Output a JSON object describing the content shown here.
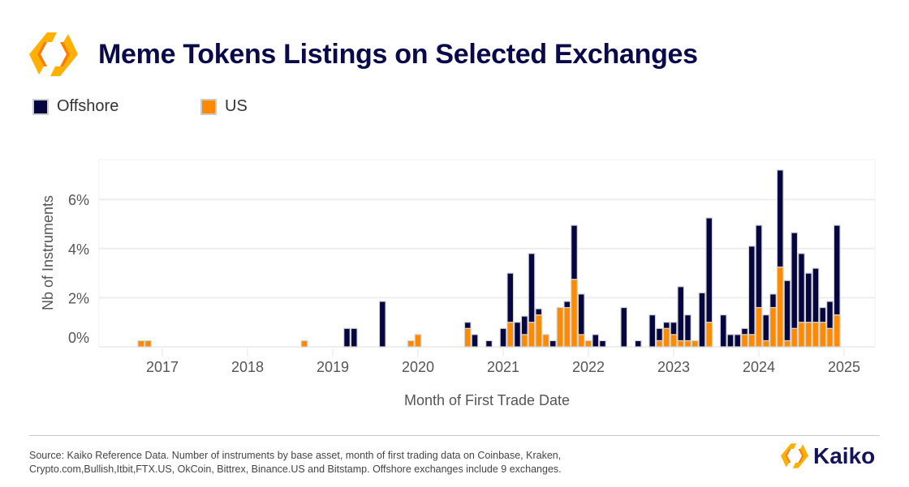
{
  "title": "Meme Tokens Listings on Selected Exchanges",
  "brand_name": "Kaiko",
  "colors": {
    "offshore": "#05053f",
    "us": "#ff8a00",
    "title": "#0a0a4a",
    "grid": "#eeeeee"
  },
  "legend": [
    {
      "label": "Offshore",
      "color": "#05053f"
    },
    {
      "label": "US",
      "color": "#ff8a00"
    }
  ],
  "source_line1": "Source: Kaiko Reference Data. Number of instruments by base asset, month of first trading data on Coinbase, Kraken,",
  "source_line2": "Crypto.com,Bullish,Itbit,FTX.US, OkCoin, Bittrex, Binance.US and Bitstamp. Offshore exchanges include 9 exchanges.",
  "chart_data": {
    "type": "bar",
    "stacked": true,
    "title": "Meme Tokens Listings on Selected Exchanges",
    "xlabel": "Month of First Trade Date",
    "ylabel": "Nb of Instruments",
    "ylim": [
      0,
      7.6
    ],
    "yticks": [
      0,
      2,
      4,
      6
    ],
    "ytick_labels": [
      "0%",
      "2%",
      "4%",
      "6%"
    ],
    "xtick_labels": [
      "2017",
      "2018",
      "2019",
      "2020",
      "2021",
      "2022",
      "2023",
      "2024",
      "2025"
    ],
    "x_start": "2016-09",
    "x_end": "2025-05",
    "legend_position": "top-left",
    "grid": true,
    "series_order": [
      "US",
      "Offshore"
    ],
    "points": [
      {
        "month": "2016-10",
        "us": 0.25,
        "offshore": 0
      },
      {
        "month": "2016-11",
        "us": 0.25,
        "offshore": 0
      },
      {
        "month": "2018-09",
        "us": 0.25,
        "offshore": 0
      },
      {
        "month": "2019-03",
        "us": 0,
        "offshore": 0.75
      },
      {
        "month": "2019-04",
        "us": 0,
        "offshore": 0.75
      },
      {
        "month": "2019-08",
        "us": 0,
        "offshore": 1.85
      },
      {
        "month": "2019-12",
        "us": 0.25,
        "offshore": 0
      },
      {
        "month": "2020-01",
        "us": 0.5,
        "offshore": 0
      },
      {
        "month": "2020-08",
        "us": 0.75,
        "offshore": 0.25
      },
      {
        "month": "2020-09",
        "us": 0,
        "offshore": 0.5
      },
      {
        "month": "2020-11",
        "us": 0,
        "offshore": 0.25
      },
      {
        "month": "2021-01",
        "us": 0,
        "offshore": 0.75
      },
      {
        "month": "2021-02",
        "us": 1.0,
        "offshore": 2.0
      },
      {
        "month": "2021-03",
        "us": 0,
        "offshore": 1.0
      },
      {
        "month": "2021-04",
        "us": 0.5,
        "offshore": 0.75
      },
      {
        "month": "2021-05",
        "us": 1.0,
        "offshore": 2.8
      },
      {
        "month": "2021-06",
        "us": 1.3,
        "offshore": 0.25
      },
      {
        "month": "2021-07",
        "us": 0.5,
        "offshore": 0
      },
      {
        "month": "2021-08",
        "us": 0,
        "offshore": 0.25
      },
      {
        "month": "2021-09",
        "us": 1.6,
        "offshore": 0
      },
      {
        "month": "2021-10",
        "us": 1.6,
        "offshore": 0.25
      },
      {
        "month": "2021-11",
        "us": 2.75,
        "offshore": 2.2
      },
      {
        "month": "2021-12",
        "us": 0.5,
        "offshore": 1.65
      },
      {
        "month": "2022-01",
        "us": 0.25,
        "offshore": 0
      },
      {
        "month": "2022-02",
        "us": 0,
        "offshore": 0.5
      },
      {
        "month": "2022-03",
        "us": 0,
        "offshore": 0.25
      },
      {
        "month": "2022-06",
        "us": 0,
        "offshore": 1.6
      },
      {
        "month": "2022-08",
        "us": 0,
        "offshore": 0.25
      },
      {
        "month": "2022-10",
        "us": 0,
        "offshore": 1.3
      },
      {
        "month": "2022-11",
        "us": 0.25,
        "offshore": 0.5
      },
      {
        "month": "2022-12",
        "us": 0.75,
        "offshore": 0.25
      },
      {
        "month": "2023-01",
        "us": 0.5,
        "offshore": 0.5
      },
      {
        "month": "2023-02",
        "us": 0.25,
        "offshore": 2.2
      },
      {
        "month": "2023-03",
        "us": 0.25,
        "offshore": 1.05
      },
      {
        "month": "2023-04",
        "us": 0.25,
        "offshore": 0
      },
      {
        "month": "2023-05",
        "us": 0,
        "offshore": 2.2
      },
      {
        "month": "2023-06",
        "us": 1.0,
        "offshore": 4.25
      },
      {
        "month": "2023-08",
        "us": 0,
        "offshore": 1.3
      },
      {
        "month": "2023-09",
        "us": 0,
        "offshore": 0.5
      },
      {
        "month": "2023-10",
        "us": 0,
        "offshore": 0.5
      },
      {
        "month": "2023-11",
        "us": 0.5,
        "offshore": 0.25
      },
      {
        "month": "2023-12",
        "us": 0.5,
        "offshore": 3.6
      },
      {
        "month": "2024-01",
        "us": 1.6,
        "offshore": 3.35
      },
      {
        "month": "2024-02",
        "us": 0.25,
        "offshore": 1.05
      },
      {
        "month": "2024-03",
        "us": 1.6,
        "offshore": 0.55
      },
      {
        "month": "2024-04",
        "us": 3.25,
        "offshore": 3.95
      },
      {
        "month": "2024-05",
        "us": 0.25,
        "offshore": 2.45
      },
      {
        "month": "2024-06",
        "us": 0.75,
        "offshore": 3.9
      },
      {
        "month": "2024-07",
        "us": 1.0,
        "offshore": 2.8
      },
      {
        "month": "2024-08",
        "us": 1.0,
        "offshore": 2.0
      },
      {
        "month": "2024-09",
        "us": 1.0,
        "offshore": 2.2
      },
      {
        "month": "2024-10",
        "us": 1.0,
        "offshore": 0.6
      },
      {
        "month": "2024-11",
        "us": 0.75,
        "offshore": 1.1
      },
      {
        "month": "2024-12",
        "us": 1.3,
        "offshore": 3.65
      }
    ]
  }
}
